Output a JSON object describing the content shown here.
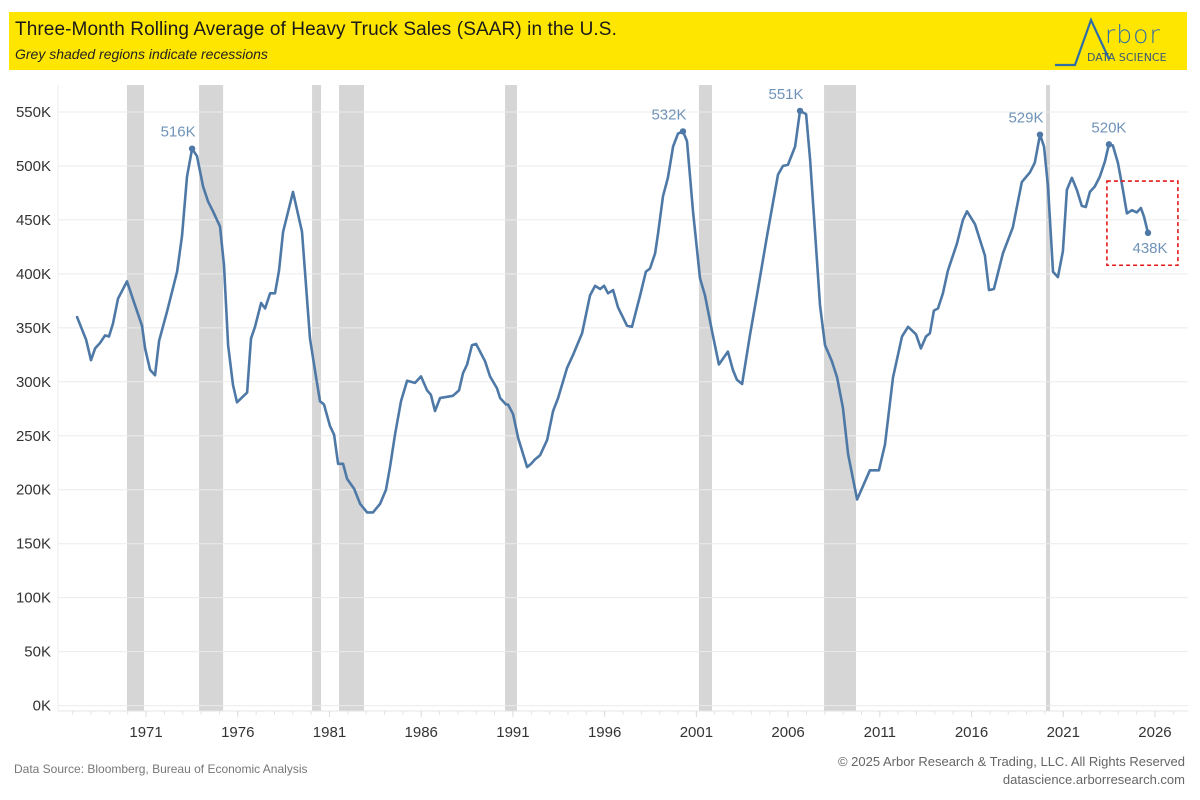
{
  "header": {
    "title": "Three-Month Rolling Average of Heavy Truck Sales (SAAR) in the U.S.",
    "subtitle": "Grey shaded regions indicate recessions",
    "background_color": "#ffe600",
    "logo_word": "rbor",
    "logo_sub": "DATA SCIENCE"
  },
  "footer": {
    "source": "Data Source: Bloomberg, Bureau of Economic Analysis",
    "copyright": "© 2025 Arbor Research & Trading, LLC. All Rights Reserved",
    "website": "datascience.arborresearch.com"
  },
  "chart_data": {
    "type": "line",
    "title": "Three-Month Rolling Average of Heavy Truck Sales (SAAR) in the U.S.",
    "subtitle": "Grey shaded regions indicate recessions",
    "xlabel": "",
    "ylabel": "",
    "units": "thousands of units (K)",
    "xlim": [
      1966.2,
      2027.8
    ],
    "ylim": [
      -5,
      575
    ],
    "grid": true,
    "line_color": "#4e79a7",
    "recession_color": "#d6d6d6",
    "annotation_color": "#e31a1c",
    "x_ticks": [
      1971,
      1976,
      1981,
      1986,
      1991,
      1996,
      2001,
      2006,
      2011,
      2016,
      2021,
      2026
    ],
    "x_tick_labels": [
      "1971",
      "1976",
      "1981",
      "1986",
      "1991",
      "1996",
      "2001",
      "2006",
      "2011",
      "2016",
      "2021",
      "2026"
    ],
    "y_ticks": [
      0,
      50,
      100,
      150,
      200,
      250,
      300,
      350,
      400,
      450,
      500,
      550
    ],
    "y_tick_labels": [
      "0K",
      "50K",
      "100K",
      "150K",
      "200K",
      "250K",
      "300K",
      "350K",
      "400K",
      "450K",
      "500K",
      "550K"
    ],
    "recessions": [
      [
        1969.96,
        1970.89
      ],
      [
        1973.89,
        1975.2
      ],
      [
        1980.05,
        1980.54
      ],
      [
        1981.52,
        1982.88
      ],
      [
        1990.57,
        1991.22
      ],
      [
        2001.14,
        2001.85
      ],
      [
        2007.96,
        2009.7
      ],
      [
        2020.06,
        2020.28
      ]
    ],
    "series": [
      {
        "name": "Heavy Truck Sales (3M avg, SAAR)",
        "x": [
          1967.24,
          1967.73,
          1968.0,
          1968.22,
          1968.49,
          1968.77,
          1968.98,
          1969.2,
          1969.47,
          1969.96,
          1970.4,
          1970.78,
          1970.95,
          1971.22,
          1971.49,
          1971.71,
          1972.14,
          1972.69,
          1972.96,
          1973.23,
          1973.51,
          1973.78,
          1974.11,
          1974.38,
          1974.65,
          1975.03,
          1975.25,
          1975.47,
          1975.74,
          1975.96,
          1976.51,
          1976.72,
          1976.94,
          1977.27,
          1977.49,
          1977.76,
          1978.03,
          1978.25,
          1978.47,
          1979.01,
          1979.5,
          1979.94,
          1980.27,
          1980.48,
          1980.7,
          1981.03,
          1981.25,
          1981.47,
          1981.74,
          1981.96,
          1982.34,
          1982.67,
          1983.05,
          1983.37,
          1983.76,
          1984.08,
          1984.3,
          1984.57,
          1984.9,
          1985.23,
          1985.66,
          1985.99,
          1986.32,
          1986.53,
          1986.75,
          1987.03,
          1987.73,
          1988.06,
          1988.28,
          1988.5,
          1988.77,
          1988.99,
          1989.48,
          1989.75,
          1990.13,
          1990.3,
          1990.62,
          1990.73,
          1991.01,
          1991.28,
          1991.77,
          1991.99,
          1992.2,
          1992.48,
          1992.86,
          1993.19,
          1993.46,
          1993.95,
          1994.28,
          1994.77,
          1995.2,
          1995.48,
          1995.75,
          1995.97,
          1996.18,
          1996.46,
          1996.73,
          1997.22,
          1997.49,
          1997.93,
          1998.25,
          1998.47,
          1998.75,
          1998.91,
          1999.18,
          1999.45,
          1999.73,
          2000.0,
          2000.27,
          2000.49,
          2000.82,
          2001.2,
          2001.47,
          2001.85,
          2002.23,
          2002.72,
          2002.99,
          2003.21,
          2003.49,
          2003.92,
          2004.36,
          2004.85,
          2005.45,
          2005.72,
          2005.99,
          2006.38,
          2006.65,
          2006.98,
          2007.2,
          2007.74,
          2008.01,
          2008.39,
          2008.67,
          2008.99,
          2009.27,
          2009.76,
          2010.46,
          2010.95,
          2011.28,
          2011.72,
          2012.21,
          2012.54,
          2012.97,
          2013.24,
          2013.52,
          2013.73,
          2013.95,
          2014.17,
          2014.44,
          2014.71,
          2015.2,
          2015.53,
          2015.75,
          2016.19,
          2016.73,
          2016.95,
          2017.22,
          2017.71,
          2018.25,
          2018.74,
          2019.18,
          2019.45,
          2019.73,
          2019.95,
          2020.17,
          2020.44,
          2020.71,
          2020.98,
          2021.2,
          2021.47,
          2021.74,
          2022.01,
          2022.23,
          2022.45,
          2022.72,
          2022.99,
          2023.27,
          2023.49,
          2023.7,
          2023.98,
          2024.25,
          2024.47,
          2024.74,
          2025.01,
          2025.23,
          2025.4,
          2025.62
        ],
        "values": [
          360,
          339,
          320,
          331,
          336,
          343,
          342,
          354,
          377,
          393,
          371,
          352,
          331,
          311,
          306,
          338,
          365,
          402,
          435,
          490,
          516,
          509,
          481,
          467,
          458,
          444,
          408,
          334,
          297,
          281,
          290,
          340,
          351,
          373,
          368,
          382,
          382,
          403,
          439,
          476,
          439,
          340,
          304,
          282,
          279,
          259,
          251,
          224,
          224,
          210,
          201,
          187,
          179,
          179,
          187,
          200,
          221,
          251,
          282,
          301,
          299,
          305,
          292,
          288,
          273,
          285,
          287,
          292,
          308,
          316,
          334,
          335,
          319,
          305,
          294,
          285,
          279,
          279,
          270,
          248,
          221,
          224,
          228,
          232,
          246,
          273,
          285,
          313,
          325,
          345,
          380,
          389,
          386,
          389,
          382,
          385,
          369,
          352,
          351,
          380,
          402,
          405,
          419,
          437,
          472,
          489,
          518,
          530,
          532,
          523,
          457,
          396,
          380,
          347,
          316,
          328,
          311,
          302,
          298,
          343,
          386,
          435,
          492,
          500,
          501,
          518,
          551,
          548,
          506,
          371,
          334,
          319,
          304,
          276,
          233,
          191,
          218,
          218,
          242,
          304,
          342,
          351,
          344,
          331,
          342,
          345,
          366,
          368,
          382,
          403,
          428,
          450,
          458,
          446,
          417,
          385,
          386,
          419,
          443,
          485,
          494,
          503,
          529,
          518,
          481,
          402,
          397,
          421,
          478,
          489,
          478,
          463,
          462,
          476,
          481,
          490,
          504,
          520,
          519,
          503,
          478,
          456,
          459,
          457,
          461,
          453,
          438
        ]
      }
    ],
    "annotations": [
      {
        "text": "516K",
        "x": 1973.51,
        "y": 516,
        "position": "above-left"
      },
      {
        "text": "532K",
        "x": 2000.27,
        "y": 532,
        "position": "above-left"
      },
      {
        "text": "551K",
        "x": 2006.65,
        "y": 551,
        "position": "above-left"
      },
      {
        "text": "529K",
        "x": 2019.73,
        "y": 529,
        "position": "above-left"
      },
      {
        "text": "520K",
        "x": 2023.49,
        "y": 520,
        "position": "above"
      },
      {
        "text": "438K",
        "x": 2025.62,
        "y": 438,
        "position": "below"
      }
    ],
    "highlight_box": {
      "x0": 2023.38,
      "x1": 2027.25,
      "y0": 408,
      "y1": 486,
      "style": "dashed-red"
    }
  }
}
